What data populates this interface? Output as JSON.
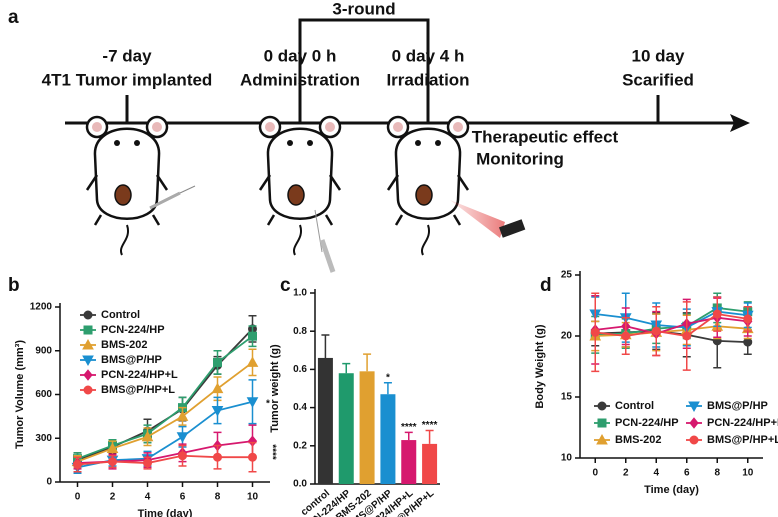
{
  "timeline": {
    "label": "a",
    "bracket": "3-round",
    "events": [
      {
        "time": "-7 day",
        "event": "4T1 Tumor implanted"
      },
      {
        "time": "0 day 0 h",
        "event": "Administration"
      },
      {
        "time": "0 day 4 h",
        "event": "Irradiation"
      },
      {
        "time": "10 day",
        "event": "Scarified"
      }
    ],
    "note": [
      "Therapeutic effect",
      "Monitoring"
    ]
  },
  "chart_data": [
    {
      "type": "line",
      "panel_label": "b",
      "xlabel": "Time (day)",
      "ylabel": "Tumor Volume (mm³)",
      "x": [
        0,
        2,
        4,
        6,
        8,
        10
      ],
      "xlim": [
        -1,
        11
      ],
      "xticks": [
        0,
        2,
        4,
        6,
        8,
        10
      ],
      "ylim": [
        0,
        1200
      ],
      "yticks": [
        0,
        300,
        600,
        900,
        1200
      ],
      "legend": "upper left",
      "annotations": [
        "*",
        "****"
      ],
      "series": [
        {
          "name": "Control",
          "color": "#3a3a3a",
          "marker": "circle",
          "values": [
            150,
            240,
            350,
            500,
            800,
            1050
          ],
          "errors": [
            50,
            40,
            80,
            80,
            60,
            90
          ]
        },
        {
          "name": "PCN-224/HP",
          "color": "#2e9e6e",
          "marker": "square",
          "values": [
            160,
            250,
            330,
            510,
            820,
            1000
          ],
          "errors": [
            40,
            40,
            60,
            70,
            80,
            70
          ]
        },
        {
          "name": "BMS-202",
          "color": "#e0a030",
          "marker": "triangle-up",
          "values": [
            140,
            230,
            310,
            450,
            640,
            820
          ],
          "errors": [
            40,
            50,
            60,
            60,
            80,
            90
          ]
        },
        {
          "name": "BMS@P/HP",
          "color": "#1a8fd0",
          "marker": "triangle-down",
          "values": [
            100,
            150,
            160,
            310,
            490,
            550
          ],
          "errors": [
            40,
            40,
            50,
            70,
            90,
            150
          ]
        },
        {
          "name": "PCN-224/HP+L",
          "color": "#d6186e",
          "marker": "diamond",
          "values": [
            130,
            140,
            150,
            200,
            250,
            280
          ],
          "errors": [
            40,
            50,
            50,
            60,
            90,
            110
          ]
        },
        {
          "name": "BMS@P/HP+L",
          "color": "#f04848",
          "marker": "circle",
          "values": [
            120,
            140,
            130,
            180,
            170,
            170
          ],
          "errors": [
            50,
            40,
            40,
            70,
            80,
            100
          ]
        }
      ]
    },
    {
      "type": "bar",
      "panel_label": "c",
      "ylabel": "Tumor weight (g)",
      "categories": [
        "control",
        "PCN-224/HP",
        "BMS-202",
        "BMS@P/HP",
        "PCN-224/HP+L",
        "BMS@P/HP+L"
      ],
      "values": [
        0.66,
        0.58,
        0.59,
        0.47,
        0.23,
        0.21
      ],
      "errors": [
        0.12,
        0.05,
        0.09,
        0.06,
        0.04,
        0.07
      ],
      "colors": [
        "#333333",
        "#1f9a6c",
        "#e0a030",
        "#1a8fd0",
        "#d6186e",
        "#f04848"
      ],
      "annotations": [
        null,
        null,
        null,
        "*",
        "****",
        "****"
      ],
      "ylim": [
        0,
        1.0
      ],
      "yticks": [
        {
          "value": 0,
          "label": "0.0"
        },
        0.2,
        0.4,
        0.6,
        0.8,
        {
          "value": 1,
          "label": "1.0"
        }
      ]
    },
    {
      "type": "line",
      "panel_label": "d",
      "xlabel": "Time (day)",
      "ylabel": "Body Weight (g)",
      "x": [
        0,
        2,
        4,
        6,
        8,
        10
      ],
      "xlim": [
        -1,
        11
      ],
      "xticks": [
        0,
        2,
        4,
        6,
        8,
        10
      ],
      "ylim": [
        10,
        25
      ],
      "yticks": [
        10,
        15,
        20,
        25
      ],
      "legend": "lower center",
      "series": [
        {
          "name": "Control",
          "color": "#3a3a3a",
          "marker": "circle",
          "values": [
            20.2,
            20.3,
            20.4,
            20.1,
            19.6,
            19.5
          ],
          "errors": [
            1.0,
            1.2,
            1.5,
            1.8,
            2.2,
            1.0
          ]
        },
        {
          "name": "PCN-224/HP",
          "color": "#2e9e6e",
          "marker": "square",
          "values": [
            20.1,
            20.2,
            20.6,
            20.8,
            22.3,
            22.0
          ],
          "errors": [
            1.5,
            1.2,
            1.2,
            1.0,
            1.2,
            0.8
          ]
        },
        {
          "name": "BMS-202",
          "color": "#e0a030",
          "marker": "triangle-up",
          "values": [
            20.0,
            20.1,
            20.3,
            20.5,
            20.8,
            20.6
          ],
          "errors": [
            1.2,
            1.0,
            1.5,
            1.2,
            1.0,
            0.8
          ]
        },
        {
          "name": "BMS@P/HP",
          "color": "#1a8fd0",
          "marker": "triangle-down",
          "values": [
            21.8,
            21.5,
            20.9,
            20.7,
            22.0,
            21.7
          ],
          "errors": [
            1.4,
            2.0,
            1.8,
            1.5,
            1.2,
            1.0
          ]
        },
        {
          "name": "PCN-224/HP+L",
          "color": "#d6186e",
          "marker": "diamond",
          "values": [
            20.5,
            20.8,
            20.2,
            21.0,
            21.5,
            21.2
          ],
          "errors": [
            2.8,
            1.5,
            1.8,
            2.0,
            1.6,
            1.2
          ]
        },
        {
          "name": "BMS@P/HP+L",
          "color": "#f04848",
          "marker": "circle",
          "values": [
            20.3,
            20.0,
            20.4,
            20.0,
            21.8,
            21.4
          ],
          "errors": [
            3.2,
            1.5,
            2.0,
            2.8,
            1.4,
            1.0
          ]
        }
      ]
    }
  ]
}
